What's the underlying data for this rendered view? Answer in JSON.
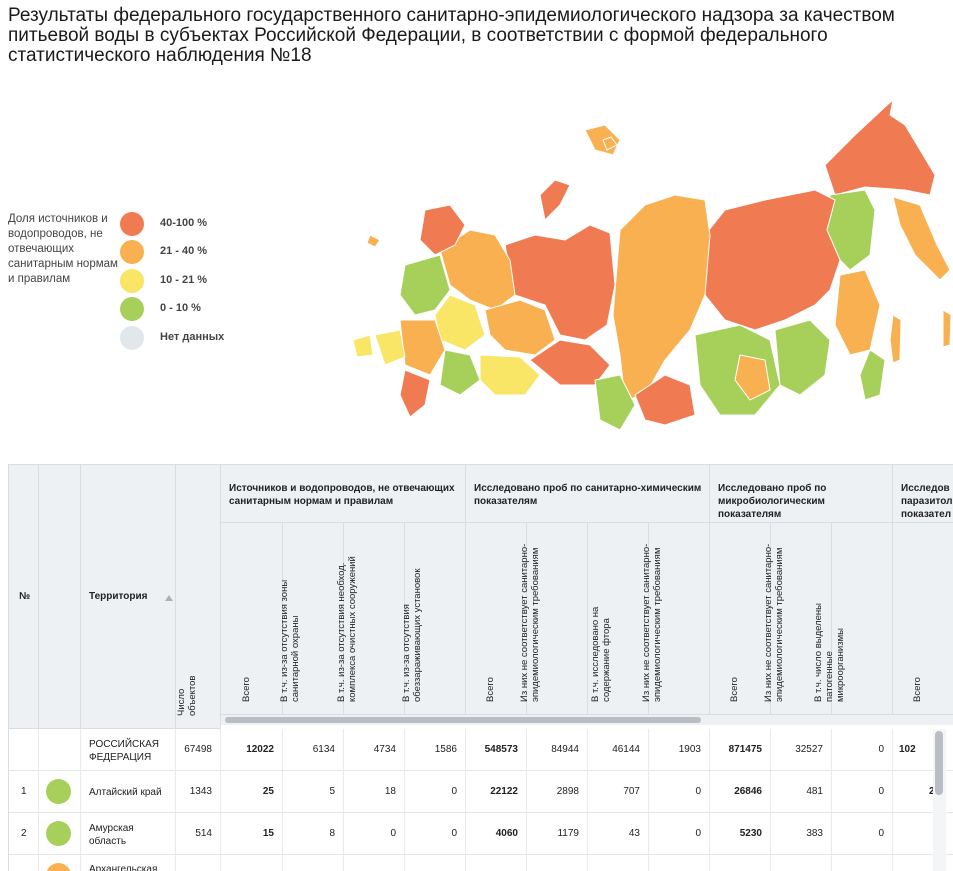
{
  "title": "Результаты федерального государственного санитарно-эпидемиологического надзора за качеством питьевой воды в субъектах Российской Федерации, в соответствии с формой федерального статистического наблюдения №18",
  "legend": {
    "caption": "Доля источников и водопроводов, не отвечающих санитарным нормам и правилам",
    "items": [
      {
        "label": "40-100 %",
        "color": "#f07a52"
      },
      {
        "label": "21 - 40 %",
        "color": "#f9b050"
      },
      {
        "label": "10 - 21 %",
        "color": "#f9e566"
      },
      {
        "label": "0 - 10 %",
        "color": "#a6d05a"
      },
      {
        "label": "Нет данных",
        "color": "#e2e7ec"
      }
    ]
  },
  "map": {
    "icon": "russia-regions-choropleth",
    "colors": {
      "high": "#f07a52",
      "mid": "#f9b050",
      "low": "#f9e566",
      "min": "#a6d05a",
      "none": "#e2e7ec"
    }
  },
  "table": {
    "headers": {
      "num": "№",
      "territory": "Территория",
      "objects": "Число объектов",
      "group1": "Источников и водопроводов, не отвечающих санитарным нормам и правилам",
      "group2": "Исследовано проб по санитарно-химическим показателям",
      "group3": "Исследовано проб по микробиологическим показателям",
      "group4": "Исследов паразитол показател",
      "g1_total": "Всего",
      "g1_zone": "В т.ч. из-за отсутствия зоны санитарной охраны",
      "g1_treatment": "В т.ч. из-за отсутствия необход. комплекса очистных сооружений",
      "g1_disinfect": "В т.ч. из-за отсутствия обеззараживающих установок",
      "g2_total": "Всего",
      "g2_fail": "Из них не соответствует санитарно-эпидемиологическим требованиям",
      "g2_fluor": "В т.ч. исследовано на содержание фтора",
      "g2_fluor_fail": "Из них не соответствует санитарно-эпидемиологическим требованиям",
      "g3_total": "Всего",
      "g3_fail": "Из них не соответствует санитарно-эпидемиологическим требованиям",
      "g3_pathogen": "В т.ч. число выделены патогенные микроорганизмы",
      "g4_total": "Всего"
    },
    "rows": [
      {
        "num": "",
        "name": "РОССИЙСКАЯ ФЕДЕРАЦИЯ",
        "color": "",
        "objects": "67498",
        "g1_total": "12022",
        "g1_zone": "6134",
        "g1_treatment": "4734",
        "g1_disinfect": "1586",
        "g2_total": "548573",
        "g2_fail": "84944",
        "g2_fluor": "46144",
        "g2_fluor_fail": "1903",
        "g3_total": "871475",
        "g3_fail": "32527",
        "g3_pathogen": "0",
        "g4_total": "102"
      },
      {
        "num": "1",
        "name": "Алтайский край",
        "color": "#a6d05a",
        "objects": "1343",
        "g1_total": "25",
        "g1_zone": "5",
        "g1_treatment": "18",
        "g1_disinfect": "0",
        "g2_total": "22122",
        "g2_fail": "2898",
        "g2_fluor": "707",
        "g2_fluor_fail": "0",
        "g3_total": "26846",
        "g3_fail": "481",
        "g3_pathogen": "0",
        "g4_total": "2"
      },
      {
        "num": "2",
        "name": "Амурская область",
        "color": "#a6d05a",
        "objects": "514",
        "g1_total": "15",
        "g1_zone": "8",
        "g1_treatment": "0",
        "g1_disinfect": "0",
        "g2_total": "4060",
        "g2_fail": "1179",
        "g2_fluor": "43",
        "g2_fluor_fail": "0",
        "g3_total": "5230",
        "g3_fail": "383",
        "g3_pathogen": "0",
        "g4_total": ""
      },
      {
        "num": "",
        "name": "Архангельская",
        "color": "#f9b050",
        "objects": "",
        "g1_total": "",
        "g1_zone": "",
        "g1_treatment": "",
        "g1_disinfect": "",
        "g2_total": "",
        "g2_fail": "",
        "g2_fluor": "",
        "g2_fluor_fail": "",
        "g3_total": "",
        "g3_fail": "",
        "g3_pathogen": "",
        "g4_total": ""
      }
    ]
  }
}
